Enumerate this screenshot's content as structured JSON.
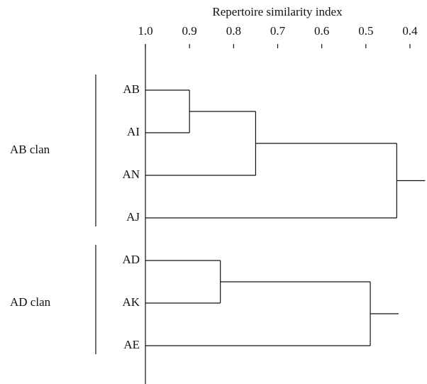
{
  "chart_data": {
    "type": "dendrogram",
    "x_label": "Repertoire similarity index",
    "xlim": [
      1.0,
      0.4
    ],
    "xticks": [
      {
        "value": 1.0,
        "label": "1.0"
      },
      0.9,
      0.8,
      0.7,
      0.6,
      0.5,
      0.4
    ],
    "leaves": [
      "AB",
      "AI",
      "AN",
      "AJ",
      "AD",
      "AK",
      "AE"
    ],
    "merges": [
      {
        "children": [
          0,
          1
        ],
        "height": 0.9
      },
      {
        "children": [
          7,
          2
        ],
        "height": 0.75
      },
      {
        "children": [
          8,
          3
        ],
        "height": 0.43
      },
      {
        "children": [
          4,
          5
        ],
        "height": 0.83
      },
      {
        "children": [
          10,
          6
        ],
        "height": 0.49
      }
    ],
    "clans": [
      {
        "name": "AB clan",
        "members": [
          "AB",
          "AI",
          "AN",
          "AJ"
        ]
      },
      {
        "name": "AD clan",
        "members": [
          "AD",
          "AK",
          "AE"
        ]
      }
    ]
  }
}
